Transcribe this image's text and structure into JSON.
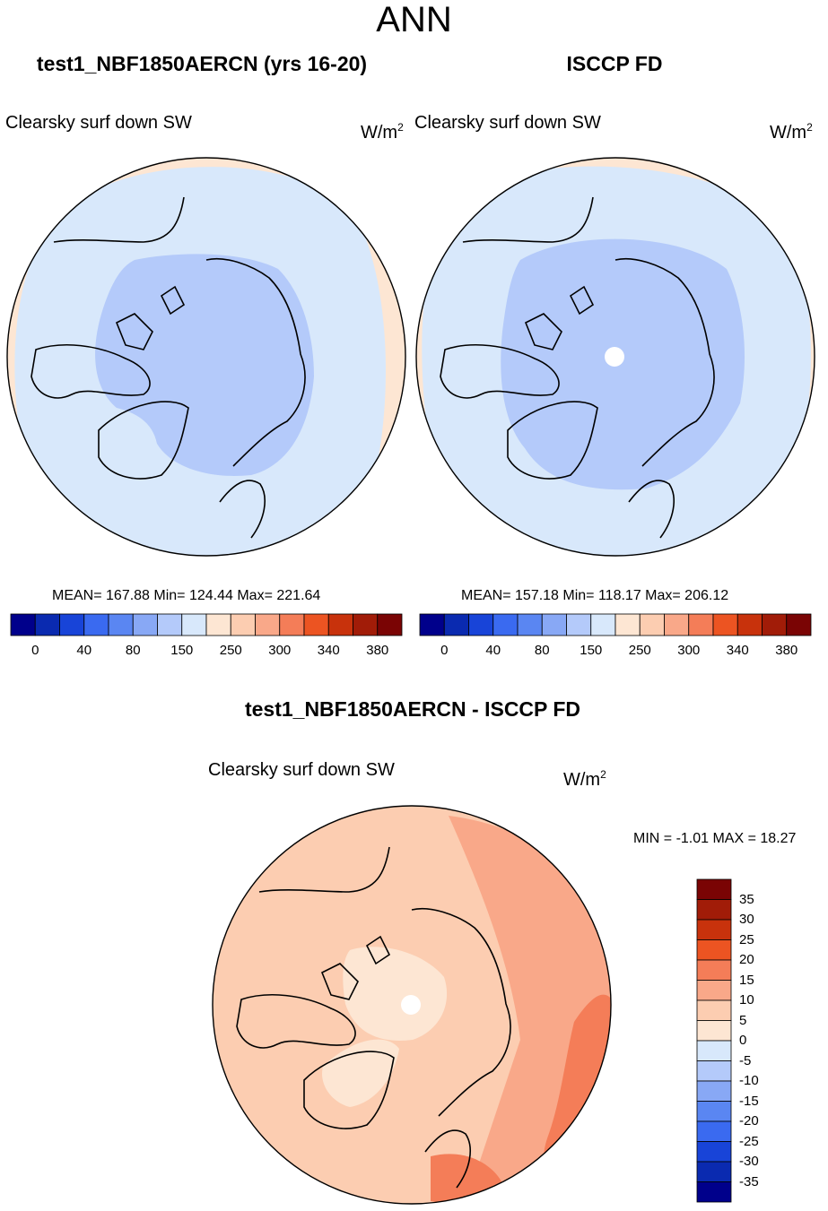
{
  "title": "ANN",
  "panels": {
    "model": {
      "title": "test1_NBF1850AERCN (yrs 16-20)",
      "variable": "Clearsky surf down SW",
      "units_base": "W/m",
      "units_exp": "2",
      "stats": "MEAN= 167.88  Min= 124.44  Max= 221.64"
    },
    "obs": {
      "title": "ISCCP FD",
      "variable": "Clearsky surf down SW",
      "units_base": "W/m",
      "units_exp": "2",
      "stats": "MEAN= 157.18  Min= 118.17  Max= 206.12"
    },
    "diff": {
      "title": "test1_NBF1850AERCN - ISCCP FD",
      "variable": "Clearsky surf down SW",
      "units_base": "W/m",
      "units_exp": "2",
      "minmax": "MIN =  -1.01 MAX =  18.27"
    }
  },
  "colorbar_main": {
    "colors": [
      "#00008b",
      "#0a2ab0",
      "#1844d8",
      "#3a6af0",
      "#5a86f2",
      "#88a8f5",
      "#b4cafa",
      "#d8e8fb",
      "#fde6d3",
      "#fccdb1",
      "#f9a889",
      "#f47d58",
      "#ec5422",
      "#c8320c",
      "#a11c08",
      "#7a0404"
    ],
    "tick_labels": [
      "0",
      "40",
      "80",
      "150",
      "250",
      "300",
      "340",
      "380"
    ]
  },
  "colorbar_diff": {
    "colors": [
      "#00008b",
      "#0a2ab0",
      "#1844d8",
      "#3a6af0",
      "#5a86f2",
      "#88a8f5",
      "#b4cafa",
      "#d8e8fb",
      "#fde6d3",
      "#fccdb1",
      "#f9a889",
      "#f47d58",
      "#ec5422",
      "#c8320c",
      "#a11c08",
      "#7a0404"
    ],
    "tick_labels": [
      "35",
      "30",
      "25",
      "20",
      "15",
      "10",
      "5",
      "0",
      "-5",
      "-10",
      "-15",
      "-20",
      "-25",
      "-30",
      "-35"
    ]
  },
  "chart_data": [
    {
      "type": "heatmap",
      "projection": "north polar stereographic",
      "title": "test1_NBF1850AERCN (yrs 16-20)",
      "variable": "Clearsky surf down SW",
      "units": "W/m2",
      "mean": 167.88,
      "min": 124.44,
      "max": 221.64,
      "contour_levels": [
        0,
        40,
        80,
        150,
        250,
        300,
        340,
        380
      ]
    },
    {
      "type": "heatmap",
      "projection": "north polar stereographic",
      "title": "ISCCP FD",
      "variable": "Clearsky surf down SW",
      "units": "W/m2",
      "mean": 157.18,
      "min": 118.17,
      "max": 206.12,
      "contour_levels": [
        0,
        40,
        80,
        150,
        250,
        300,
        340,
        380
      ]
    },
    {
      "type": "heatmap",
      "projection": "north polar stereographic",
      "title": "test1_NBF1850AERCN - ISCCP FD",
      "variable": "Clearsky surf down SW",
      "units": "W/m2",
      "min": -1.01,
      "max": 18.27,
      "contour_levels": [
        -35,
        -30,
        -25,
        -20,
        -15,
        -10,
        -5,
        0,
        5,
        10,
        15,
        20,
        25,
        30,
        35
      ]
    }
  ]
}
